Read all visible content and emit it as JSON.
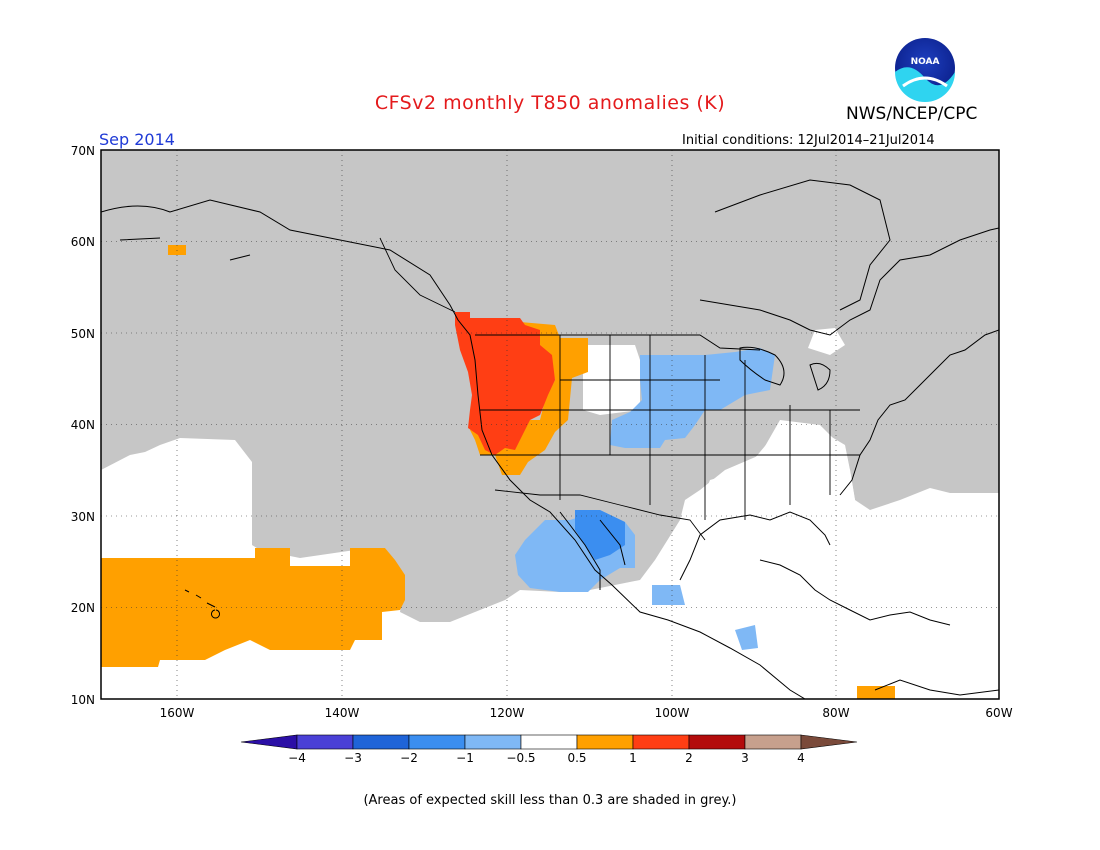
{
  "title": "CFSv2 monthly T850 anomalies (K)",
  "agency": "NWS/NCEP/CPC",
  "logo_text": "NOAA",
  "month_label": "Sep 2014",
  "init_conditions": "Initial conditions: 12Jul2014–21Jul2014",
  "footnote": "(Areas of expected skill less than 0.3 are shaded in grey.)",
  "lat_labels": [
    "70N",
    "60N",
    "50N",
    "40N",
    "30N",
    "20N",
    "10N"
  ],
  "lon_labels": [
    "160W",
    "140W",
    "120W",
    "100W",
    "80W",
    "60W"
  ],
  "colorbar": {
    "ticks": [
      "−4",
      "−3",
      "−2",
      "−1",
      "−0.5",
      "0.5",
      "1",
      "2",
      "3",
      "4"
    ],
    "colors": [
      "#2b0fa6",
      "#4a40d6",
      "#1f64d8",
      "#3b8ef0",
      "#7fb8f5",
      "#ffffff",
      "#ffa000",
      "#ff3e14",
      "#b30c0c",
      "#c7a08d",
      "#7a4a3a"
    ]
  },
  "colors": {
    "skill_grey": "#c6c6c6",
    "warm_1": "#ffa000",
    "warm_2": "#ff3e14",
    "cool_1": "#7fb8f5",
    "cool_2": "#3b8ef0",
    "title": "#e41a1c",
    "month": "#1f3ad6"
  }
}
